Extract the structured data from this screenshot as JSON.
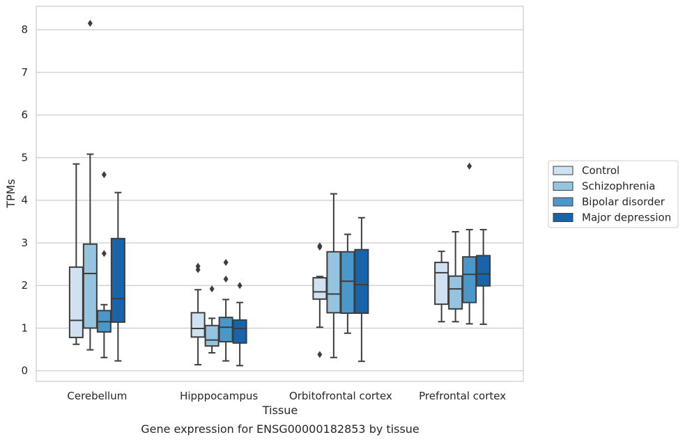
{
  "chart_data": {
    "type": "box",
    "title": "",
    "caption": "Gene expression for ENSG00000182853 by tissue",
    "xlabel": "Tissue",
    "ylabel": "TPMs",
    "ylim": [
      -0.25,
      8.55
    ],
    "yticks": [
      0,
      1,
      2,
      3,
      4,
      5,
      6,
      7,
      8
    ],
    "grid": "horizontal",
    "legend_position": "right",
    "categories": [
      "Cerebellum",
      "Hipppocampus",
      "Orbitofrontal cortex",
      "Prefrontal cortex"
    ],
    "series": [
      {
        "name": "Control",
        "color": "#d0e1f2",
        "boxes": [
          {
            "whisker_low": 0.62,
            "q1": 0.78,
            "median": 1.18,
            "q3": 2.43,
            "whisker_high": 4.85,
            "outliers": []
          },
          {
            "whisker_low": 0.14,
            "q1": 0.79,
            "median": 0.99,
            "q3": 1.36,
            "whisker_high": 1.9,
            "outliers": [
              2.37,
              2.45
            ]
          },
          {
            "whisker_low": 1.02,
            "q1": 1.68,
            "median": 1.85,
            "q3": 2.18,
            "whisker_high": 2.21,
            "outliers": [
              0.38,
              2.9,
              2.93
            ]
          },
          {
            "whisker_low": 1.15,
            "q1": 1.56,
            "median": 2.3,
            "q3": 2.54,
            "whisker_high": 2.8,
            "outliers": []
          }
        ]
      },
      {
        "name": "Schizophrenia",
        "color": "#94c4df",
        "boxes": [
          {
            "whisker_low": 0.49,
            "q1": 1.0,
            "median": 2.28,
            "q3": 2.97,
            "whisker_high": 5.08,
            "outliers": [
              8.15
            ]
          },
          {
            "whisker_low": 0.42,
            "q1": 0.58,
            "median": 0.72,
            "q3": 1.06,
            "whisker_high": 1.23,
            "outliers": [
              1.92
            ]
          },
          {
            "whisker_low": 0.31,
            "q1": 1.36,
            "median": 1.8,
            "q3": 2.79,
            "whisker_high": 4.15,
            "outliers": []
          },
          {
            "whisker_low": 1.15,
            "q1": 1.45,
            "median": 1.92,
            "q3": 2.22,
            "whisker_high": 3.26,
            "outliers": []
          }
        ]
      },
      {
        "name": "Bipolar disorder",
        "color": "#4a98c9",
        "boxes": [
          {
            "whisker_low": 0.31,
            "q1": 0.91,
            "median": 1.15,
            "q3": 1.41,
            "whisker_high": 1.55,
            "outliers": [
              2.75,
              4.6
            ]
          },
          {
            "whisker_low": 0.23,
            "q1": 0.68,
            "median": 1.02,
            "q3": 1.25,
            "whisker_high": 1.67,
            "outliers": [
              2.15,
              2.54
            ]
          },
          {
            "whisker_low": 0.88,
            "q1": 1.35,
            "median": 2.1,
            "q3": 2.79,
            "whisker_high": 3.2,
            "outliers": []
          },
          {
            "whisker_low": 1.1,
            "q1": 1.6,
            "median": 2.26,
            "q3": 2.67,
            "whisker_high": 3.31,
            "outliers": [
              4.8
            ]
          }
        ]
      },
      {
        "name": "Major depression",
        "color": "#1764ab",
        "boxes": [
          {
            "whisker_low": 0.23,
            "q1": 1.14,
            "median": 1.69,
            "q3": 3.1,
            "whisker_high": 4.18,
            "outliers": []
          },
          {
            "whisker_low": 0.12,
            "q1": 0.65,
            "median": 0.99,
            "q3": 1.19,
            "whisker_high": 1.6,
            "outliers": [
              2.0
            ]
          },
          {
            "whisker_low": 0.22,
            "q1": 1.35,
            "median": 2.02,
            "q3": 2.84,
            "whisker_high": 3.59,
            "outliers": []
          },
          {
            "whisker_low": 1.09,
            "q1": 1.99,
            "median": 2.27,
            "q3": 2.7,
            "whisker_high": 3.31,
            "outliers": []
          }
        ]
      }
    ]
  }
}
